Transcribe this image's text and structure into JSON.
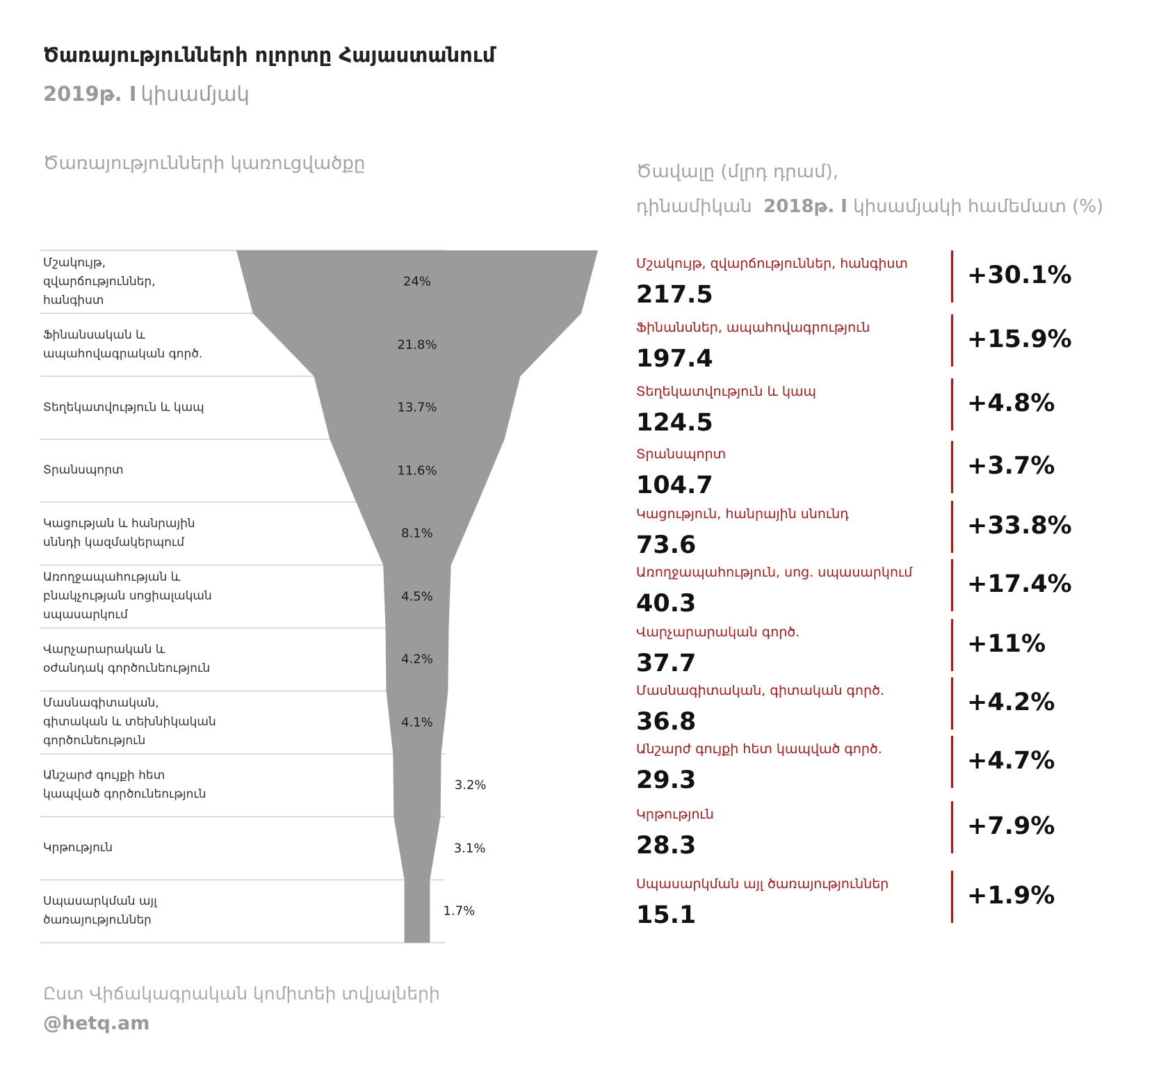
{
  "header": {
    "title": "Ծառայությունների ոլորտը Հայաստանում",
    "subtitle_year": "2019թ. I",
    "subtitle_rest": "կիսամյակ"
  },
  "left": {
    "heading": "Ծառայությունների կառուցվածքը"
  },
  "right": {
    "heading_line1": "Ծավալը (մլրդ դրամ),",
    "heading_line2_a": "դինամիկան",
    "heading_line2_b": "2018թ. I",
    "heading_line2_c": "կիսամյակի համեմատ (%)"
  },
  "chart_data": {
    "type": "funnel",
    "categories": [
      "Մշակույթ, զվարճություններ, հանգիստ",
      "Ֆինանսական և ապահովագրական գործ.",
      "Տեղեկատվություն և կապ",
      "Տրանսպորտ",
      "Կացության և հանրային սննդի կազմակերպում",
      "Առողջապահության և բնակչության սոցիալական սպասարկում",
      "Վարչարարական և օժանդակ գործունեություն",
      "Մասնագիտական, գիտական և տեխնիկական գործունեություն",
      "Անշարժ գույքի հետ կապված գործունեություն",
      "Կրթություն",
      "Սպասարկման այլ ծառայություններ"
    ],
    "labels_multiline": [
      [
        "Մշակույթ,",
        "զվարճություններ,",
        "հանգիստ"
      ],
      [
        "Ֆինանսական և",
        "ապահովագրական գործ."
      ],
      [
        "Տեղեկատվություն և կապ"
      ],
      [
        "Տրանսպորտ"
      ],
      [
        "Կացության և հանրային",
        "սննդի կազմակերպում"
      ],
      [
        "Առողջապահության և",
        "բնակչության սոցիալական",
        "սպասարկում"
      ],
      [
        "Վարչարարական և",
        "օժանդակ գործունեություն"
      ],
      [
        "Մասնագիտական,",
        "գիտական և տեխնիկական",
        "գործունեություն"
      ],
      [
        "Անշարժ գույքի հետ",
        "կապված գործունեություն"
      ],
      [
        "Կրթություն"
      ],
      [
        "Սպասարկման այլ",
        "ծառայություններ"
      ]
    ],
    "share_values": [
      24,
      21.8,
      13.7,
      11.6,
      8.1,
      4.5,
      4.2,
      4.1,
      3.2,
      3.1,
      1.7
    ],
    "share_labels": [
      "24%",
      "21.8%",
      "13.7%",
      "11.6%",
      "8.1%",
      "4.5%",
      "4.2%",
      "4.1%",
      "3.2%",
      "3.1%",
      "1.7%"
    ],
    "volume_series": {
      "names": [
        "Մշակույթ, զվարճություններ, հանգիստ",
        "Ֆինանսներ, ապահովագրություն",
        "Տեղեկատվություն և կապ",
        "Տրանսպորտ",
        "Կացություն, հանրային սնունդ",
        "Առողջապահություն, սոց. սպասարկում",
        "Վարչարարական գործ.",
        "Մասնագիտական, գիտական գործ.",
        "Անշարժ գույքի հետ կապված գործ.",
        "Կրթություն",
        "Սպասարկման այլ ծառայություններ"
      ],
      "values": [
        "217.5",
        "197.4",
        "124.5",
        "104.7",
        "73.6",
        "40.3",
        "37.7",
        "36.8",
        "29.3",
        "28.3",
        "15.1"
      ],
      "change": [
        "+30.1%",
        "+15.9%",
        "+4.8%",
        "+3.7%",
        "+33.8%",
        "+17.4%",
        "+11%",
        "+4.2%",
        "+4.7%",
        "+7.9%",
        "+1.9%"
      ]
    },
    "colors": {
      "funnel": "#9b9b9b",
      "accent": "#a61b1b",
      "divider": "#cfcfcf"
    }
  },
  "footer": {
    "source": "Ըստ Վիճակագրական կոմիտեի տվյալների",
    "handle": "@hetq.am"
  }
}
